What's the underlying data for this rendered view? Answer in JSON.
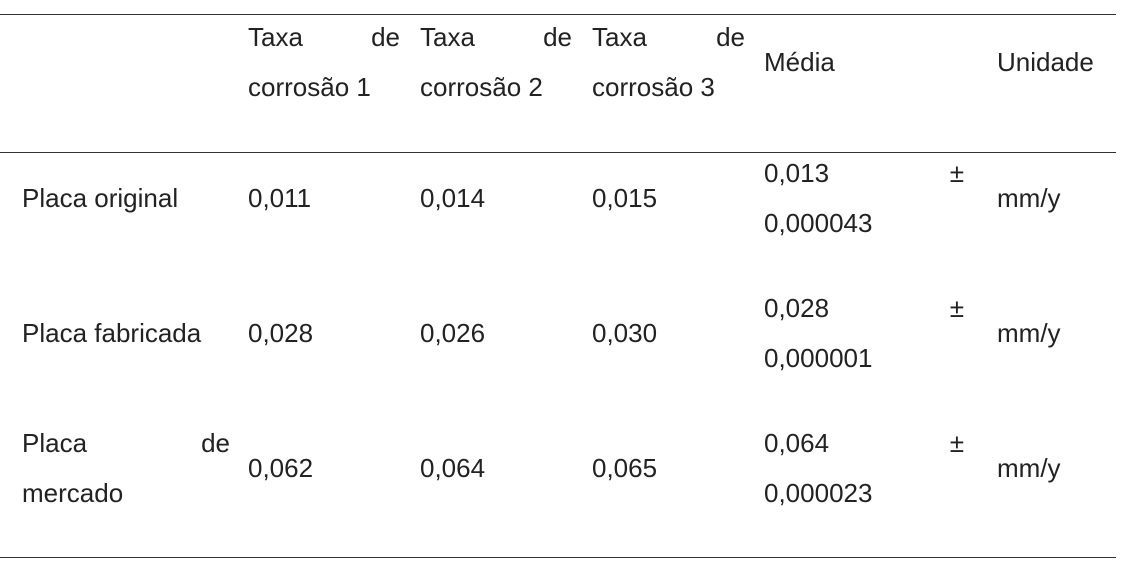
{
  "table": {
    "header": [
      "Taxa de corrosão 1",
      "Taxa de corrosão 2",
      "Taxa de corrosão 3",
      "Média",
      "Unidade"
    ],
    "rows": [
      [
        "Placa original",
        "0,011",
        "0,014",
        "0,015",
        "0,013 ± 0,000043",
        "mm/y"
      ],
      [
        "Placa fabricada",
        "0,028",
        "0,026",
        "0,030",
        "0,028 ± 0,000001",
        "mm/y"
      ],
      [
        "Placa de mercado",
        "0,062",
        "0,064",
        "0,065",
        "0,064 ± 0,000023",
        "mm/y"
      ]
    ]
  }
}
